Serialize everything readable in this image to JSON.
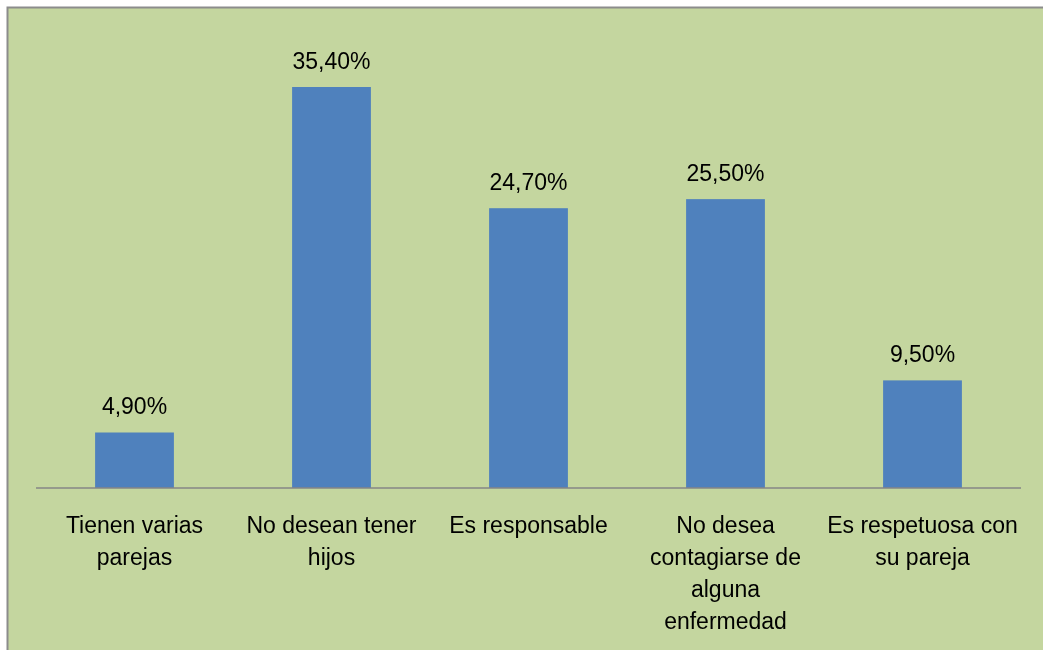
{
  "chart_data": {
    "type": "bar",
    "categories": [
      "Tienen varias parejas",
      "No desean tener hijos",
      "Es responsable",
      "No desea contagiarse de alguna enfermedad",
      "Es respetuosa con su pareja"
    ],
    "values": [
      4.9,
      35.4,
      24.7,
      25.5,
      9.5
    ],
    "value_labels": [
      "4,90%",
      "35,40%",
      "24,70%",
      "25,50%",
      "9,50%"
    ],
    "color": "#4f81bd",
    "tick_labels": "x"
  }
}
